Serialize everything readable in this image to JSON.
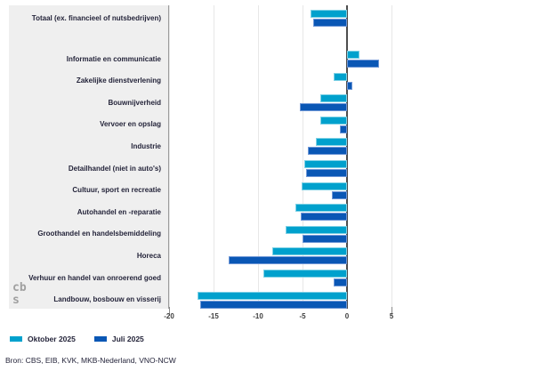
{
  "chart_data": {
    "type": "bar",
    "orientation": "horizontal",
    "title": "",
    "xlabel": "",
    "ylabel": "",
    "xlim": [
      -20,
      5.5
    ],
    "x_ticks": [
      -20,
      -15,
      -10,
      -5,
      0,
      5
    ],
    "x_tick_labels": [
      "-20",
      "-15",
      "-10",
      "-5",
      "0",
      "5"
    ],
    "grid": true,
    "legend_position": "bottom-left",
    "categories": [
      "Totaal (ex. financieel of nutsbedrijven)",
      "Informatie en communicatie",
      "Zakelijke dienstverlening",
      "Bouwnijverheid",
      "Vervoer en opslag",
      "Industrie",
      "Detailhandel (niet in auto's)",
      "Cultuur, sport en recreatie",
      "Autohandel en -reparatie",
      "Groothandel en handelsbemiddeling",
      "Horeca",
      "Verhuur en handel van onroerend goed",
      "Landbouw, bosbouw en visserij"
    ],
    "series": [
      {
        "name": "Oktober 2025",
        "color": "#00a1cd",
        "edge_color": "#7fd1e5",
        "values": [
          -4.1,
          1.4,
          -1.5,
          -3,
          -3,
          -3.5,
          -4.8,
          -5.1,
          -5.8,
          -6.9,
          -8.4,
          -9.4,
          -16.8
        ]
      },
      {
        "name": "Juli 2025",
        "color": "#0a57b5",
        "edge_color": "#6f97d6",
        "values": [
          -3.8,
          3.6,
          0.6,
          -5.3,
          -0.8,
          -4.4,
          -4.6,
          -1.7,
          -5.2,
          -5,
          -13.3,
          -1.5,
          -16.5
        ]
      }
    ]
  },
  "colors": {
    "panel_background": "#efefef",
    "gridline": "#e7e7e7",
    "zero_line": "#4d4d4d",
    "text": "#24243a",
    "logo_gray": "#a0a0a0"
  },
  "logo": "cbs-logo",
  "footer": {
    "source_text": "Bron: CBS, EIB, KVK, MKB-Nederland, VNO-NCW"
  }
}
